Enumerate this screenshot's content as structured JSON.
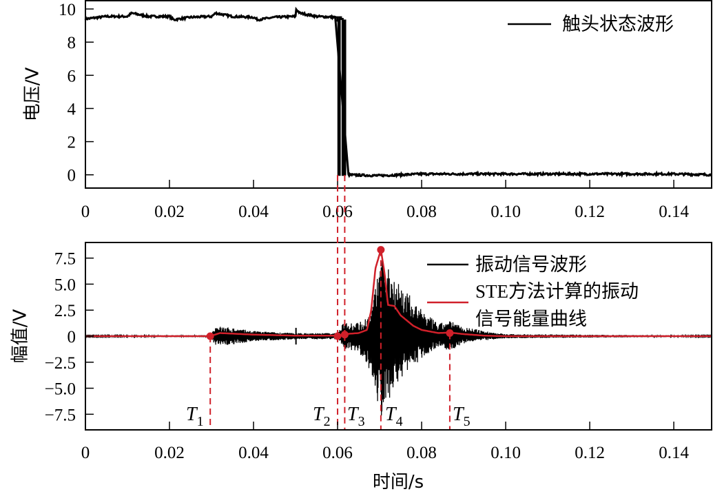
{
  "chart_data": [
    {
      "type": "line",
      "panel": "top",
      "title": "",
      "xlabel": "",
      "ylabel": "电压/V",
      "xlim": [
        0,
        0.149
      ],
      "ylim": [
        -0.8,
        10.5
      ],
      "x_ticks": [
        0,
        0.02,
        0.04,
        0.06,
        0.08,
        0.1,
        0.12,
        0.14
      ],
      "x_tick_labels": [
        "0",
        "0.02",
        "0.04",
        "0.06",
        "0.08",
        "0.10",
        "0.12",
        "0.14"
      ],
      "y_ticks": [
        0,
        2,
        4,
        6,
        8,
        10
      ],
      "y_tick_labels": [
        "0",
        "2",
        "4",
        "6",
        "8",
        "10"
      ],
      "grid": false,
      "legend_position": "upper right",
      "series": [
        {
          "name": "触头状态波形",
          "color": "#000000",
          "x": [
            0,
            0.005,
            0.01,
            0.011,
            0.015,
            0.02,
            0.021,
            0.025,
            0.03,
            0.031,
            0.035,
            0.04,
            0.041,
            0.045,
            0.05,
            0.0501,
            0.051,
            0.055,
            0.0595,
            0.06,
            0.0602,
            0.0605,
            0.0608,
            0.0612,
            0.0615,
            0.0618,
            0.062,
            0.07,
            0.08,
            0.1,
            0.12,
            0.14,
            0.149
          ],
          "y": [
            9.4,
            9.55,
            9.55,
            9.75,
            9.55,
            9.55,
            9.35,
            9.5,
            9.55,
            9.75,
            9.55,
            9.5,
            9.35,
            9.5,
            9.55,
            10.0,
            9.75,
            9.55,
            9.5,
            9.3,
            0.0,
            9.5,
            9.4,
            0.0,
            9.3,
            0.0,
            0.0,
            -0.05,
            0.05,
            0.05,
            0.05,
            0.05,
            0.0
          ]
        }
      ],
      "annotations": [
        {
          "type": "vline",
          "x": 0.06,
          "style": "dashed",
          "color": "#d0202a"
        },
        {
          "type": "vline",
          "x": 0.0617,
          "style": "dashed",
          "color": "#d0202a"
        }
      ]
    },
    {
      "type": "line",
      "panel": "bottom",
      "title": "",
      "xlabel": "时间/s",
      "ylabel": "幅值/V",
      "xlim": [
        0,
        0.149
      ],
      "ylim": [
        -9.0,
        9.0
      ],
      "x_ticks": [
        0,
        0.02,
        0.04,
        0.06,
        0.08,
        0.1,
        0.12,
        0.14
      ],
      "x_tick_labels": [
        "0",
        "0.02",
        "0.04",
        "0.06",
        "0.08",
        "0.10",
        "0.12",
        "0.14"
      ],
      "y_ticks": [
        -7.5,
        -5.0,
        -2.5,
        0,
        2.5,
        5.0,
        7.5
      ],
      "y_tick_labels": [
        "−7.5",
        "−5.0",
        "−2.5",
        "0",
        "2.5",
        "5.0",
        "7.5"
      ],
      "grid": false,
      "legend_position": "upper right",
      "series": [
        {
          "name": "振动信号波形",
          "color": "#000000",
          "description": "oscillating vibration signal envelope",
          "x": [
            0,
            0.0297,
            0.031,
            0.035,
            0.04,
            0.045,
            0.05,
            0.055,
            0.06,
            0.0617,
            0.065,
            0.068,
            0.0703,
            0.071,
            0.073,
            0.076,
            0.08,
            0.084,
            0.0867,
            0.09,
            0.095,
            0.1,
            0.149
          ],
          "upper": [
            0.05,
            0.1,
            1.0,
            0.8,
            0.5,
            0.4,
            0.3,
            0.3,
            0.3,
            1.5,
            1.3,
            2.2,
            8.0,
            7.2,
            6.5,
            4.5,
            2.5,
            1.2,
            1.5,
            0.9,
            0.5,
            0.2,
            0.05
          ],
          "lower": [
            -0.05,
            -0.1,
            -1.0,
            -0.8,
            -0.5,
            -0.4,
            -0.3,
            -0.3,
            -0.3,
            -1.2,
            -1.5,
            -3.5,
            -8.0,
            -7.0,
            -5.5,
            -3.5,
            -2.2,
            -1.0,
            -1.4,
            -0.7,
            -0.4,
            -0.2,
            -0.05
          ]
        },
        {
          "name": "STE方法计算的振动信号能量曲线",
          "color": "#d0202a",
          "x": [
            0,
            0.0297,
            0.032,
            0.04,
            0.05,
            0.06,
            0.0617,
            0.065,
            0.067,
            0.068,
            0.069,
            0.0703,
            0.0712,
            0.072,
            0.0735,
            0.075,
            0.078,
            0.08,
            0.084,
            0.0867,
            0.09,
            0.095,
            0.1,
            0.149
          ],
          "y": [
            0,
            0,
            0.3,
            0.15,
            0.05,
            0.05,
            0.2,
            0.3,
            0.6,
            2.5,
            6.5,
            8.3,
            6.0,
            3.0,
            2.9,
            2.0,
            1.0,
            0.6,
            0.3,
            0.35,
            0.2,
            0.05,
            0.0,
            0.0
          ]
        }
      ],
      "markers": [
        {
          "label": "T",
          "sub": "1",
          "x": 0.0297,
          "y": 0.0
        },
        {
          "label": "T",
          "sub": "2",
          "x": 0.06,
          "y": 0.0
        },
        {
          "label": "T",
          "sub": "3",
          "x": 0.0617,
          "y": 0.15
        },
        {
          "label": "T",
          "sub": "4",
          "x": 0.0703,
          "y": 8.3
        },
        {
          "label": "T",
          "sub": "5",
          "x": 0.0867,
          "y": 0.3
        }
      ]
    }
  ],
  "figure": {
    "top_panel": {
      "ylabel": "电压/V",
      "legend_label": "触头状态波形"
    },
    "bottom_panel": {
      "ylabel": "幅值/V",
      "xlabel": "时间/s",
      "legend": [
        {
          "label_line1": "振动信号波形",
          "color": "#000000"
        },
        {
          "label_line1_latin": "STE",
          "label_line1_rest": "方法计算的振动",
          "label_line2": "信号能量曲线",
          "color": "#d0202a"
        }
      ],
      "markers": [
        {
          "letter": "T",
          "sub": "1"
        },
        {
          "letter": "T",
          "sub": "2"
        },
        {
          "letter": "T",
          "sub": "3"
        },
        {
          "letter": "T",
          "sub": "4"
        },
        {
          "letter": "T",
          "sub": "5"
        }
      ]
    },
    "x_tick_labels": [
      "0",
      "0.02",
      "0.04",
      "0.06",
      "0.08",
      "0.10",
      "0.12",
      "0.14"
    ],
    "top_y_tick_labels": [
      "10",
      "8",
      "6",
      "4",
      "2",
      "0"
    ],
    "bottom_y_tick_labels": [
      "7.5",
      "5.0",
      "2.5",
      "0",
      "−2.5",
      "−5.0",
      "−7.5"
    ],
    "colors": {
      "axis": "#000000",
      "energy_curve": "#d0202a",
      "signal": "#000000"
    }
  }
}
